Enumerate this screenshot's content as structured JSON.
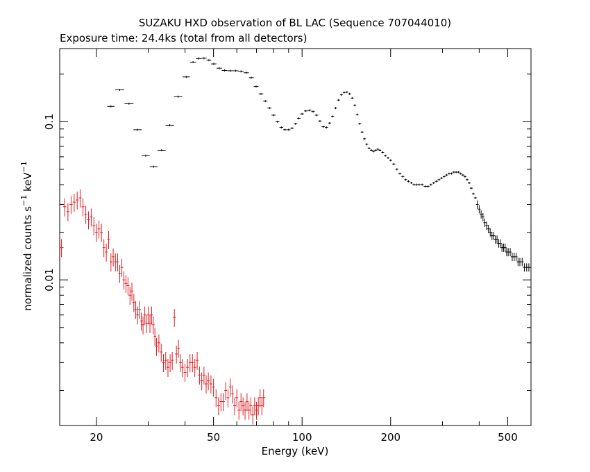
{
  "chart_data": {
    "type": "scatter",
    "title": "SUZAKU HXD observation of BL LAC (Sequence 707044010)",
    "subtitle": "Exposure time: 24.4ks (total from all detectors)",
    "xlabel": "Energy (keV)",
    "ylabel_main": "normalized counts s",
    "ylabel_sup1": "−1",
    "ylabel_mid": " keV",
    "ylabel_sup2": "−1",
    "x_scale": "log",
    "y_scale": "log",
    "xlim": [
      15,
      600
    ],
    "ylim": [
      0.0012,
      0.29
    ],
    "x_ticks": [
      {
        "value": 20,
        "label": "20"
      },
      {
        "value": 50,
        "label": "50"
      },
      {
        "value": 100,
        "label": "100"
      },
      {
        "value": 200,
        "label": "200"
      },
      {
        "value": 500,
        "label": "500"
      }
    ],
    "y_ticks": [
      {
        "value": 0.01,
        "label": "0.01"
      },
      {
        "value": 0.1,
        "label": "0.1"
      }
    ],
    "grid": false,
    "legend": "none",
    "series": [
      {
        "color": "#000000",
        "points": [
          [
            22.4,
            0.125
          ],
          [
            24.0,
            0.159
          ],
          [
            25.8,
            0.13
          ],
          [
            27.6,
            0.089
          ],
          [
            29.4,
            0.061
          ],
          [
            31.3,
            0.052
          ],
          [
            33.3,
            0.066
          ],
          [
            35.5,
            0.095
          ],
          [
            37.9,
            0.144
          ],
          [
            40.4,
            0.192
          ],
          [
            42.6,
            0.238
          ],
          [
            44.5,
            0.251
          ],
          [
            46.4,
            0.252
          ],
          [
            48.2,
            0.245
          ],
          [
            50.1,
            0.232
          ],
          [
            52.3,
            0.218
          ],
          [
            54.5,
            0.211
          ],
          [
            57.0,
            0.21
          ],
          [
            59.5,
            0.21
          ],
          [
            62.0,
            0.208
          ],
          [
            64.6,
            0.204
          ],
          [
            67.2,
            0.19
          ],
          [
            69.8,
            0.167
          ],
          [
            72.5,
            0.15
          ],
          [
            75.0,
            0.135
          ],
          [
            77.5,
            0.122
          ],
          [
            80.0,
            0.11
          ],
          [
            82.5,
            0.1
          ],
          [
            85.0,
            0.092
          ],
          [
            87.5,
            0.089
          ],
          [
            90.0,
            0.089
          ],
          [
            92.5,
            0.091
          ],
          [
            95.0,
            0.097
          ],
          [
            97.5,
            0.105
          ],
          [
            100.0,
            0.112
          ],
          [
            103.0,
            0.117
          ],
          [
            106.0,
            0.118
          ],
          [
            109.0,
            0.116
          ],
          [
            112.0,
            0.11
          ],
          [
            115.0,
            0.101
          ],
          [
            118.0,
            0.093
          ],
          [
            121.0,
            0.092
          ],
          [
            124.0,
            0.098
          ],
          [
            127.0,
            0.108
          ],
          [
            130.0,
            0.122
          ],
          [
            133.0,
            0.137
          ],
          [
            136.0,
            0.148
          ],
          [
            139.0,
            0.153
          ],
          [
            142.0,
            0.154
          ],
          [
            145.0,
            0.15
          ],
          [
            148.0,
            0.141
          ],
          [
            151.0,
            0.127
          ],
          [
            154.0,
            0.111
          ],
          [
            157.0,
            0.097
          ],
          [
            160.0,
            0.086
          ],
          [
            163.0,
            0.078
          ],
          [
            166.0,
            0.072
          ],
          [
            169.0,
            0.068
          ],
          [
            172.0,
            0.066
          ],
          [
            175.0,
            0.065
          ],
          [
            178.0,
            0.066
          ],
          [
            181.0,
            0.067
          ],
          [
            184.0,
            0.066
          ],
          [
            188.0,
            0.064
          ],
          [
            192.0,
            0.061
          ],
          [
            196.0,
            0.059
          ],
          [
            200.0,
            0.057
          ],
          [
            205.0,
            0.054
          ],
          [
            210.0,
            0.05
          ],
          [
            215.0,
            0.047
          ],
          [
            220.0,
            0.045
          ],
          [
            225.0,
            0.043
          ],
          [
            230.0,
            0.042
          ],
          [
            235.0,
            0.041
          ],
          [
            240.0,
            0.04
          ],
          [
            245.0,
            0.04
          ],
          [
            250.0,
            0.04
          ],
          [
            256.0,
            0.04
          ],
          [
            262.0,
            0.039
          ],
          [
            268.0,
            0.039
          ],
          [
            274.0,
            0.04
          ],
          [
            280.0,
            0.041
          ],
          [
            286.0,
            0.042
          ],
          [
            292.0,
            0.043
          ],
          [
            298.0,
            0.044
          ],
          [
            304.0,
            0.045
          ],
          [
            310.0,
            0.046
          ],
          [
            316.0,
            0.047
          ],
          [
            322.0,
            0.047
          ],
          [
            328.0,
            0.048
          ],
          [
            334.0,
            0.048
          ],
          [
            340.0,
            0.048
          ],
          [
            346.0,
            0.047
          ],
          [
            352.0,
            0.046
          ],
          [
            358.0,
            0.045
          ],
          [
            364.0,
            0.043
          ],
          [
            370.0,
            0.041
          ],
          [
            376.0,
            0.038
          ],
          [
            382.0,
            0.035
          ],
          [
            388.0,
            0.033
          ],
          [
            394.0,
            0.03
          ],
          [
            400.0,
            0.028
          ],
          [
            406.0,
            0.026
          ],
          [
            412.0,
            0.025
          ],
          [
            418.0,
            0.023
          ],
          [
            424.0,
            0.022
          ],
          [
            430.0,
            0.021
          ],
          [
            436.0,
            0.02
          ],
          [
            442.0,
            0.019
          ],
          [
            448.0,
            0.019
          ],
          [
            454.0,
            0.018
          ],
          [
            460.0,
            0.018
          ],
          [
            466.0,
            0.017
          ],
          [
            472.0,
            0.017
          ],
          [
            478.0,
            0.016
          ],
          [
            484.0,
            0.016
          ],
          [
            490.0,
            0.016
          ],
          [
            496.0,
            0.015
          ],
          [
            502.0,
            0.015
          ],
          [
            510.0,
            0.015
          ],
          [
            518.0,
            0.014
          ],
          [
            526.0,
            0.014
          ],
          [
            534.0,
            0.014
          ],
          [
            542.0,
            0.013
          ],
          [
            550.0,
            0.013
          ],
          [
            560.0,
            0.013
          ],
          [
            570.0,
            0.012
          ],
          [
            580.0,
            0.012
          ],
          [
            590.0,
            0.012
          ]
        ]
      },
      {
        "color": "#e0191f",
        "points": [
          [
            15.2,
            0.016
          ],
          [
            15.6,
            0.029
          ],
          [
            16.0,
            0.027
          ],
          [
            16.4,
            0.03
          ],
          [
            16.8,
            0.031
          ],
          [
            17.2,
            0.032
          ],
          [
            17.6,
            0.033
          ],
          [
            18.0,
            0.029
          ],
          [
            18.4,
            0.026
          ],
          [
            18.8,
            0.024
          ],
          [
            19.2,
            0.025
          ],
          [
            19.6,
            0.022
          ],
          [
            20.0,
            0.02
          ],
          [
            20.4,
            0.021
          ],
          [
            20.8,
            0.02
          ],
          [
            21.2,
            0.016
          ],
          [
            21.6,
            0.015
          ],
          [
            22.0,
            0.018
          ],
          [
            22.4,
            0.013
          ],
          [
            22.8,
            0.014
          ],
          [
            23.2,
            0.013
          ],
          [
            23.6,
            0.013
          ],
          [
            24.0,
            0.011
          ],
          [
            24.4,
            0.012
          ],
          [
            24.8,
            0.01
          ],
          [
            25.2,
            0.0095
          ],
          [
            25.6,
            0.0092
          ],
          [
            26.0,
            0.008
          ],
          [
            26.4,
            0.0085
          ],
          [
            26.8,
            0.0072
          ],
          [
            27.2,
            0.0065
          ],
          [
            27.6,
            0.006
          ],
          [
            28.0,
            0.0065
          ],
          [
            28.4,
            0.0055
          ],
          [
            28.8,
            0.0052
          ],
          [
            29.2,
            0.006
          ],
          [
            29.6,
            0.0053
          ],
          [
            30.0,
            0.006
          ],
          [
            30.4,
            0.0053
          ],
          [
            30.8,
            0.006
          ],
          [
            31.2,
            0.0052
          ],
          [
            31.6,
            0.0044
          ],
          [
            32.0,
            0.0038
          ],
          [
            32.6,
            0.004
          ],
          [
            33.2,
            0.0035
          ],
          [
            33.8,
            0.003
          ],
          [
            34.4,
            0.0031
          ],
          [
            35.0,
            0.0028
          ],
          [
            35.6,
            0.003
          ],
          [
            36.2,
            0.0031
          ],
          [
            36.8,
            0.0058
          ],
          [
            37.4,
            0.0034
          ],
          [
            38.0,
            0.0037
          ],
          [
            38.6,
            0.003
          ],
          [
            39.2,
            0.0028
          ],
          [
            40.0,
            0.0026
          ],
          [
            40.8,
            0.0028
          ],
          [
            41.6,
            0.003
          ],
          [
            42.4,
            0.003
          ],
          [
            43.2,
            0.0028
          ],
          [
            44.0,
            0.0031
          ],
          [
            44.8,
            0.0025
          ],
          [
            45.6,
            0.0023
          ],
          [
            46.4,
            0.0025
          ],
          [
            47.2,
            0.0022
          ],
          [
            48.0,
            0.0023
          ],
          [
            49.0,
            0.0022
          ],
          [
            50.0,
            0.0021
          ],
          [
            51.0,
            0.0018
          ],
          [
            52.0,
            0.0016
          ],
          [
            53.0,
            0.0017
          ],
          [
            54.0,
            0.0017
          ],
          [
            55.0,
            0.002
          ],
          [
            56.0,
            0.0018
          ],
          [
            57.0,
            0.0021
          ],
          [
            58.0,
            0.0019
          ],
          [
            59.0,
            0.0016
          ],
          [
            60.0,
            0.0018
          ],
          [
            61.0,
            0.0015
          ],
          [
            62.0,
            0.0017
          ],
          [
            63.0,
            0.0016
          ],
          [
            64.0,
            0.0015
          ],
          [
            65.0,
            0.0017
          ],
          [
            66.0,
            0.0015
          ],
          [
            67.0,
            0.0016
          ],
          [
            68.0,
            0.0014
          ],
          [
            69.0,
            0.0016
          ],
          [
            70.0,
            0.0015
          ],
          [
            71.0,
            0.0016
          ],
          [
            72.0,
            0.0018
          ],
          [
            73.0,
            0.0016
          ],
          [
            74.0,
            0.0018
          ]
        ]
      }
    ]
  }
}
